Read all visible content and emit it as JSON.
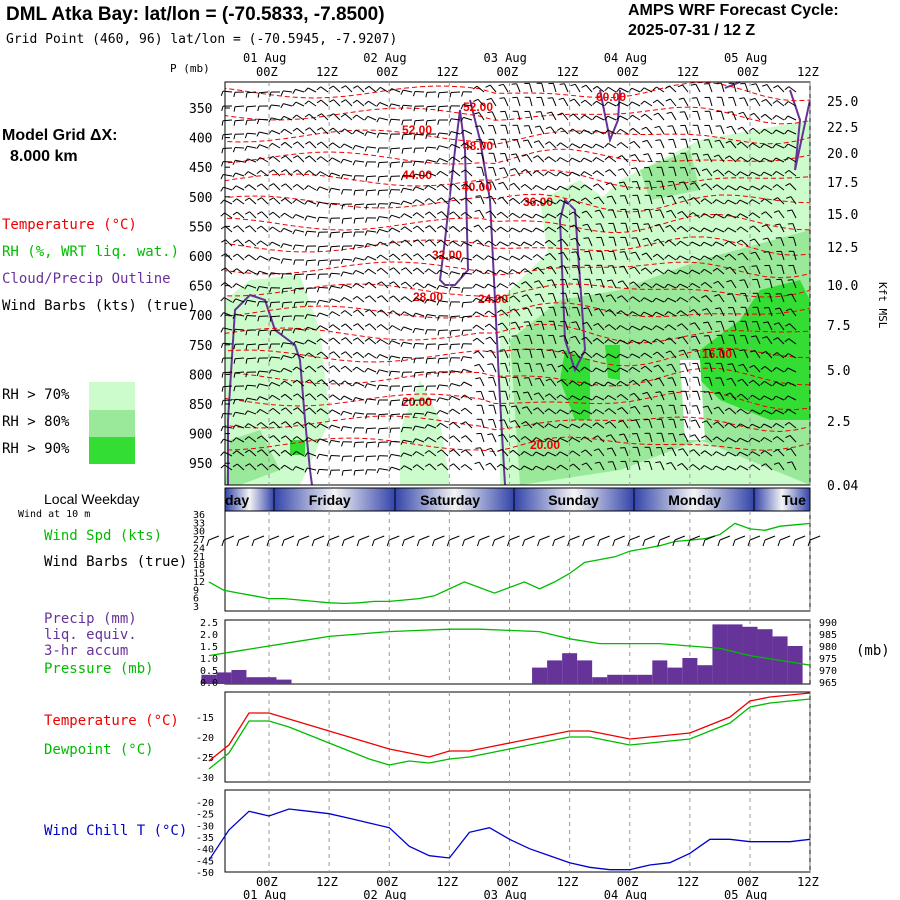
{
  "header": {
    "title": "DML Atka Bay:  lat/lon = (-70.5833, -7.8500)",
    "subtitle": "Grid Point (460, 96) lat/lon = (-70.5945, -7.9207)",
    "cycle_line1": "AMPS WRF Forecast Cycle:",
    "cycle_line2": "2025-07-31 / 12  Z"
  },
  "sidebar": {
    "model_grid_line1": "Model Grid ΔX:",
    "model_grid_line2": "8.000 km",
    "legend_temperature": "Temperature (°C)",
    "legend_rh": "RH (%, WRT liq. wat.)",
    "legend_cloud": "Cloud/Precip Outline",
    "legend_wind": "Wind Barbs (kts) (true)",
    "rh70": "RH > 70%",
    "rh80": "RH > 80%",
    "rh90": "RH > 90%",
    "local_weekday": "Local Weekday",
    "wind_at_10m": "Wind at 10 m",
    "wind_spd": "Wind Spd (kts)",
    "wind_barbs": "Wind Barbs (true)",
    "precip1": "Precip (mm)",
    "precip2": "liq. equiv.",
    "precip3": "3-hr accum",
    "pressure": "Pressure (mb)",
    "pressure_unit": "(mb)",
    "temperature": "Temperature (°C)",
    "dewpoint": "Dewpoint (°C)",
    "windchill": "Wind Chill T (°C)",
    "p_axis_label": "P (mb)",
    "kft_label": "Kft MSL"
  },
  "colors": {
    "rh70": "#ccfccc",
    "rh80": "#9ae89a",
    "rh90": "#33dd33",
    "temperature": "#ee0000",
    "dewpoint": "#00bb00",
    "cloud": "#663399",
    "windchill": "#0000cc",
    "precip": "#663399",
    "pressure": "#00bb00"
  },
  "time_axis": {
    "dates_top": [
      "01 Aug",
      "02 Aug",
      "03 Aug",
      "04 Aug",
      "05 Aug"
    ],
    "dates_bottom": [
      "01 Aug",
      "02 Aug",
      "03 Aug",
      "04 Aug",
      "05 Aug"
    ],
    "hours": [
      "00Z",
      "12Z",
      "00Z",
      "12Z",
      "00Z",
      "12Z",
      "00Z",
      "12Z",
      "00Z",
      "12Z"
    ],
    "weekdays": [
      "day",
      "Friday",
      "Saturday",
      "Sunday",
      "Monday",
      "Tue"
    ]
  },
  "chart_data": [
    {
      "type": "area",
      "name": "time-height cross section",
      "y_left_ticks": [
        "350",
        "400",
        "450",
        "500",
        "550",
        "600",
        "650",
        "700",
        "750",
        "800",
        "850",
        "900",
        "950"
      ],
      "y_right_ticks": [
        "25.0",
        "22.5",
        "20.0",
        "17.5",
        "15.0",
        "12.5",
        "10.0",
        "7.5",
        "5.0",
        "2.5",
        "0.04"
      ],
      "temperature_contours": [
        "60.00",
        "52.00",
        "48.00",
        "44.00",
        "40.00",
        "36.00",
        "32.00",
        "28.00",
        "24.00",
        "20.00",
        "20.00",
        "16.00"
      ]
    },
    {
      "type": "line",
      "name": "wind speed",
      "y_ticks": [
        "36",
        "33",
        "30",
        "27",
        "24",
        "21",
        "18",
        "15",
        "12",
        "9",
        "6",
        "3"
      ],
      "x_hours": [
        -12,
        -9,
        -6,
        -3,
        0,
        3,
        6,
        9,
        12,
        15,
        18,
        21,
        24,
        27,
        30,
        33,
        36,
        39,
        42,
        45,
        48,
        51,
        54,
        57,
        60,
        63,
        66,
        69,
        72,
        75,
        78,
        81,
        84,
        87,
        90,
        93,
        96,
        99,
        102,
        105,
        108
      ],
      "values": [
        12,
        9,
        8,
        7,
        6,
        6,
        5.5,
        5,
        4.5,
        4.3,
        4.5,
        5,
        5,
        5.5,
        6,
        7,
        9.5,
        12,
        10,
        8,
        10,
        12,
        9.5,
        12,
        15,
        19,
        20,
        21,
        23,
        24,
        25,
        26.5,
        27,
        27.5,
        29,
        33,
        31,
        30.5,
        32,
        32.5,
        33
      ]
    },
    {
      "type": "bar",
      "name": "precip and pressure",
      "y_left_ticks": [
        "2.5",
        "2.0",
        "1.5",
        "1.0",
        "0.5",
        "0.0"
      ],
      "y_right_ticks": [
        "990",
        "985",
        "980",
        "975",
        "970",
        "965"
      ],
      "precip_x_hours": [
        -12,
        -9,
        -6,
        -3,
        0,
        3,
        6,
        9,
        12,
        15,
        18,
        21,
        24,
        27,
        30,
        33,
        36,
        39,
        42,
        45,
        48,
        51,
        54,
        57,
        60,
        63,
        66,
        69,
        72,
        75,
        78,
        81,
        84,
        87,
        90,
        93,
        96,
        99,
        102,
        105
      ],
      "precip_values": [
        0.3,
        0.4,
        0.5,
        0.2,
        0.2,
        0.1,
        0,
        0,
        0,
        0,
        0,
        0,
        0,
        0,
        0,
        0,
        0,
        0,
        0,
        0,
        0,
        0,
        0.6,
        0.9,
        1.2,
        0.9,
        0.2,
        0.3,
        0.3,
        0.3,
        0.9,
        0.6,
        1.0,
        0.7,
        2.4,
        2.4,
        2.3,
        2.2,
        1.9,
        1.5
      ],
      "pressure_x_hours": [
        -12,
        -6,
        0,
        6,
        12,
        18,
        24,
        30,
        36,
        42,
        48,
        54,
        60,
        66,
        72,
        78,
        84,
        90,
        96,
        102,
        108
      ],
      "pressure_values": [
        976,
        978,
        980,
        982,
        984,
        985,
        986,
        986.5,
        987,
        987,
        986.5,
        986,
        983,
        981,
        981,
        981,
        980,
        979,
        976,
        974,
        972
      ]
    },
    {
      "type": "line",
      "name": "temperature and dewpoint",
      "y_ticks": [
        "-15",
        "-20",
        "-25",
        "-30"
      ],
      "x_hours": [
        -12,
        -8,
        -4,
        0,
        4,
        8,
        12,
        16,
        20,
        24,
        28,
        32,
        36,
        40,
        44,
        48,
        52,
        56,
        60,
        64,
        68,
        72,
        76,
        80,
        84,
        88,
        92,
        96,
        100,
        104,
        108
      ],
      "temperature": [
        -26,
        -22,
        -14,
        -14,
        -15.5,
        -17,
        -18.5,
        -20,
        -21.5,
        -23,
        -24,
        -25,
        -23.5,
        -23.5,
        -22.5,
        -21.5,
        -20.5,
        -19.5,
        -18.5,
        -18.5,
        -19.5,
        -20.5,
        -20,
        -19.5,
        -19,
        -17,
        -15,
        -11,
        -10,
        -9.5,
        -9
      ],
      "dewpoint": [
        -28,
        -24,
        -16,
        -16,
        -17.5,
        -19.5,
        -21.5,
        -23.5,
        -25.5,
        -27,
        -26,
        -26.5,
        -25.5,
        -25,
        -24,
        -23,
        -22,
        -21,
        -20,
        -20,
        -21,
        -22,
        -21.5,
        -21,
        -20.5,
        -18.5,
        -16.5,
        -12.5,
        -11.5,
        -11,
        -10.5
      ]
    },
    {
      "type": "line",
      "name": "wind chill",
      "y_ticks": [
        "-20",
        "-25",
        "-30",
        "-35",
        "-40",
        "-45",
        "-50"
      ],
      "x_hours": [
        -12,
        -8,
        -4,
        0,
        4,
        8,
        12,
        16,
        20,
        24,
        28,
        32,
        36,
        40,
        44,
        48,
        52,
        56,
        60,
        64,
        68,
        72,
        76,
        80,
        84,
        88,
        92,
        96,
        100,
        104,
        108
      ],
      "values": [
        -45,
        -32,
        -24,
        -26,
        -23,
        -24,
        -25,
        -27,
        -29,
        -31,
        -39,
        -43,
        -44,
        -33,
        -31,
        -36,
        -40,
        -43,
        -46,
        -48,
        -49,
        -49,
        -47,
        -46,
        -42,
        -36,
        -36,
        -37,
        -37,
        -37,
        -36
      ]
    }
  ]
}
